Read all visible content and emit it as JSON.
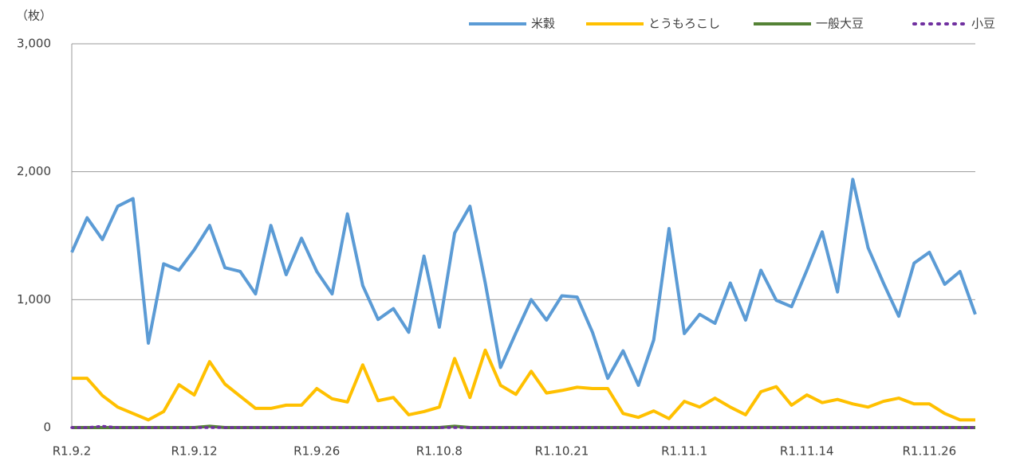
{
  "chart_data": {
    "type": "line",
    "y_axis_label": "（枚）",
    "categories": [
      "R1.9.2",
      null,
      null,
      null,
      null,
      null,
      null,
      null,
      "R1.9.12",
      null,
      null,
      null,
      null,
      null,
      null,
      null,
      "R1.9.26",
      null,
      null,
      null,
      null,
      null,
      null,
      null,
      "R1.10.8",
      null,
      null,
      null,
      null,
      null,
      null,
      null,
      "R1.10.21",
      null,
      null,
      null,
      null,
      null,
      null,
      null,
      "R1.11.1",
      null,
      null,
      null,
      null,
      null,
      null,
      null,
      "R1.11.14",
      null,
      null,
      null,
      null,
      null,
      null,
      null,
      "R1.11.26",
      null,
      null,
      null
    ],
    "series": [
      {
        "name": "米穀",
        "color": "#5b9bd5",
        "style": "solid",
        "values": [
          1370,
          1640,
          1470,
          1730,
          1790,
          660,
          1280,
          1230,
          1390,
          1580,
          1250,
          1220,
          1045,
          1580,
          1195,
          1480,
          1220,
          1045,
          1670,
          1110,
          845,
          930,
          745,
          1340,
          785,
          1520,
          1730,
          1130,
          470,
          740,
          1000,
          840,
          1030,
          1020,
          745,
          385,
          600,
          330,
          685,
          1555,
          735,
          885,
          815,
          1130,
          840,
          1230,
          995,
          945,
          1230,
          1530,
          1060,
          1940,
          1405,
          1130,
          870,
          1285,
          1370,
          1120,
          1220,
          885
        ]
      },
      {
        "name": "とうもろこし",
        "color": "#ffc000",
        "style": "solid",
        "values": [
          385,
          385,
          250,
          160,
          110,
          60,
          125,
          335,
          255,
          515,
          340,
          245,
          150,
          150,
          175,
          175,
          305,
          225,
          200,
          490,
          210,
          235,
          100,
          125,
          160,
          540,
          235,
          605,
          330,
          260,
          440,
          270,
          290,
          315,
          305,
          305,
          110,
          80,
          130,
          70,
          205,
          160,
          230,
          160,
          100,
          280,
          320,
          175,
          255,
          195,
          220,
          185,
          160,
          205,
          230,
          185,
          185,
          110,
          60,
          60
        ]
      },
      {
        "name": "一般大豆",
        "color": "#548235",
        "style": "solid",
        "values": [
          0,
          0,
          0,
          0,
          0,
          0,
          0,
          0,
          0,
          10,
          0,
          0,
          0,
          0,
          0,
          0,
          0,
          0,
          0,
          0,
          0,
          0,
          0,
          0,
          0,
          10,
          0,
          0,
          0,
          0,
          0,
          0,
          0,
          0,
          0,
          0,
          0,
          0,
          0,
          0,
          0,
          0,
          0,
          0,
          0,
          0,
          0,
          0,
          0,
          0,
          0,
          0,
          0,
          0,
          0,
          0,
          0,
          0,
          0,
          0
        ]
      },
      {
        "name": "小豆",
        "color": "#7030a0",
        "style": "dotted",
        "values": [
          0,
          0,
          10,
          0,
          0,
          0,
          0,
          0,
          0,
          0,
          0,
          0,
          0,
          0,
          0,
          0,
          0,
          0,
          0,
          0,
          0,
          0,
          0,
          0,
          0,
          0,
          0,
          0,
          0,
          0,
          0,
          0,
          0,
          0,
          0,
          0,
          0,
          0,
          0,
          0,
          0,
          0,
          0,
          0,
          0,
          0,
          0,
          0,
          0,
          0,
          0,
          0,
          0,
          0,
          0,
          0,
          0,
          0,
          0,
          0
        ]
      }
    ],
    "ylim": [
      0,
      3000
    ],
    "yticks": [
      0,
      {
        "value": 1000,
        "label": "1,000"
      },
      {
        "value": 2000,
        "label": "2,000"
      },
      {
        "value": 3000,
        "label": "3,000"
      }
    ],
    "grid": true,
    "legend": "top-right"
  }
}
